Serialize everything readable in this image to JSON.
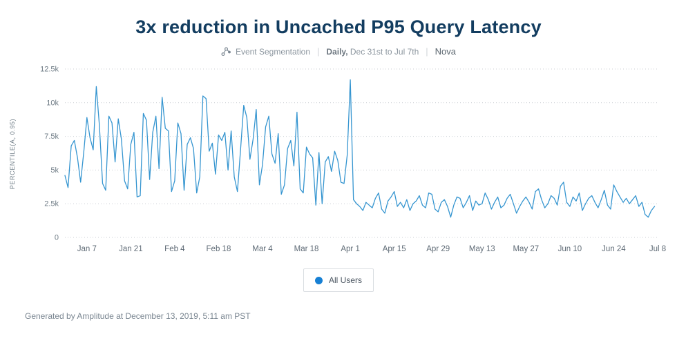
{
  "header": {
    "title": "3x reduction in Uncached P95 Query Latency",
    "chart_type_label": "Event Segmentation",
    "separator": "|",
    "interval_label": "Daily,",
    "date_range_label": "Dec 31st to Jul 7th",
    "project_label": "Nova"
  },
  "legend": {
    "items": [
      {
        "label": "All Users",
        "color": "#1780d4"
      }
    ]
  },
  "footer": {
    "text": "Generated by Amplitude at December 13, 2019, 5:11 am PST"
  },
  "colors": {
    "title": "#133d60",
    "grid": "#c9ced3",
    "tick_text": "#6e7b85"
  },
  "chart_data": {
    "type": "line",
    "title": "3x reduction in Uncached P95 Query Latency",
    "ylabel": "PERCENTILE(A, 0.95)",
    "xlabel": "",
    "ylim": [
      0,
      12500
    ],
    "x_domain": [
      0,
      189
    ],
    "x_unit": "day",
    "grid": "dotted-horizontal",
    "legend_position": "bottom",
    "y_ticks": [
      {
        "label": "0",
        "value": 0
      },
      {
        "label": "2.5k",
        "value": 2500
      },
      {
        "label": "5k",
        "value": 5000
      },
      {
        "label": "7.5k",
        "value": 7500
      },
      {
        "label": "10k",
        "value": 10000
      },
      {
        "label": "12.5k",
        "value": 12500
      }
    ],
    "x_ticks": [
      {
        "label": "Jan 7",
        "day": 7
      },
      {
        "label": "Jan 21",
        "day": 21
      },
      {
        "label": "Feb 4",
        "day": 35
      },
      {
        "label": "Feb 18",
        "day": 49
      },
      {
        "label": "Mar 4",
        "day": 63
      },
      {
        "label": "Mar 18",
        "day": 77
      },
      {
        "label": "Apr 1",
        "day": 91
      },
      {
        "label": "Apr 15",
        "day": 105
      },
      {
        "label": "Apr 29",
        "day": 119
      },
      {
        "label": "May 13",
        "day": 133
      },
      {
        "label": "May 27",
        "day": 147
      },
      {
        "label": "Jun 10",
        "day": 161
      },
      {
        "label": "Jun 24",
        "day": 175
      },
      {
        "label": "Jul 8",
        "day": 189
      }
    ],
    "series": [
      {
        "name": "All Users",
        "color": "#3595d0",
        "start_date": "Dec 31",
        "end_date": "Jul 7",
        "values": [
          4600,
          3700,
          6800,
          7200,
          5900,
          4100,
          6300,
          8900,
          7400,
          6500,
          11200,
          8300,
          4000,
          3500,
          9000,
          8500,
          5600,
          8800,
          7300,
          4200,
          3600,
          6900,
          7800,
          3000,
          3100,
          9200,
          8700,
          4300,
          7800,
          9000,
          5100,
          10400,
          8100,
          7900,
          3400,
          4200,
          8500,
          7700,
          3500,
          6900,
          7400,
          6600,
          3300,
          4500,
          10500,
          10300,
          6400,
          7000,
          4700,
          7600,
          7200,
          7800,
          5000,
          7900,
          4500,
          3400,
          6500,
          9800,
          8900,
          5800,
          7300,
          9500,
          3900,
          5400,
          8200,
          9000,
          6200,
          5500,
          7700,
          3200,
          3900,
          6600,
          7200,
          5300,
          9300,
          3600,
          3300,
          6700,
          6200,
          5900,
          2400,
          6300,
          2500,
          5600,
          6000,
          4900,
          6400,
          5700,
          4100,
          4000,
          6100,
          11700,
          2800,
          2500,
          2300,
          2000,
          2600,
          2400,
          2200,
          2900,
          3300,
          2100,
          1800,
          2700,
          3000,
          3400,
          2300,
          2600,
          2200,
          2800,
          2000,
          2500,
          2700,
          3100,
          2400,
          2200,
          3300,
          3200,
          2100,
          1900,
          2600,
          2800,
          2300,
          1500,
          2400,
          3000,
          2900,
          2200,
          2600,
          3100,
          2000,
          2700,
          2400,
          2500,
          3300,
          2800,
          2100,
          2600,
          3000,
          2200,
          2400,
          2900,
          3200,
          2500,
          1800,
          2300,
          2700,
          3000,
          2600,
          2100,
          3400,
          3600,
          2800,
          2200,
          2500,
          3100,
          2900,
          2400,
          3800,
          4100,
          2600,
          2300,
          3000,
          2700,
          3300,
          2000,
          2500,
          2900,
          3100,
          2600,
          2200,
          2800,
          3500,
          2400,
          2100,
          3900,
          3400,
          3000,
          2600,
          2900,
          2500,
          2800,
          3100,
          2300,
          2600,
          1700,
          1500,
          2000,
          2300
        ]
      }
    ]
  }
}
